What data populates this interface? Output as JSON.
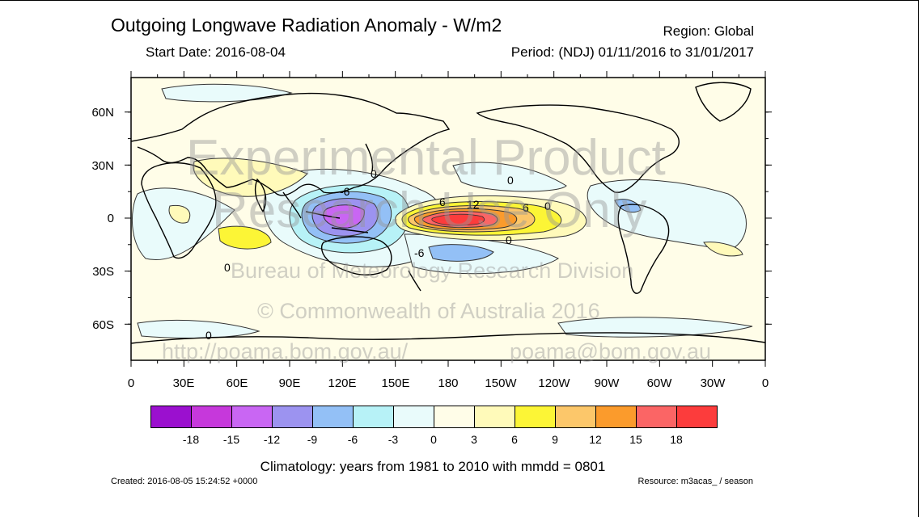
{
  "header": {
    "title": "Outgoing Longwave Radiation Anomaly - W/m2",
    "region": "Region: Global",
    "start_date": "Start Date: 2016-08-04",
    "period": "Period: (NDJ) 01/11/2016 to 31/01/2017"
  },
  "axes": {
    "lat_labels": [
      "60N",
      "30N",
      "0",
      "30S",
      "60S"
    ],
    "lon_labels": [
      "0",
      "30E",
      "60E",
      "90E",
      "120E",
      "150E",
      "180",
      "150W",
      "120W",
      "90W",
      "60W",
      "30W",
      "0"
    ]
  },
  "contour_labels": [
    "0",
    "0",
    "0",
    "-6",
    "-6",
    "6",
    "12",
    "6",
    "0",
    "0",
    "0"
  ],
  "colorbar": {
    "colors": [
      "#9b10cf",
      "#c638db",
      "#c966f3",
      "#9c93f0",
      "#93c0f6",
      "#b7f2f7",
      "#e9fbfb",
      "#fffde8",
      "#fffaba",
      "#fcf536",
      "#fcc76a",
      "#fb9b2c",
      "#fb6565",
      "#fc3c3c"
    ],
    "labels": [
      "-18",
      "-15",
      "-12",
      "-9",
      "-6",
      "-3",
      "0",
      "3",
      "6",
      "9",
      "12",
      "15",
      "18"
    ]
  },
  "footer": {
    "climatology": "Climatology: years from 1981 to 2010 with mmdd = 0801",
    "created": "Created: 2016-08-05 15:24:52 +0000",
    "resource": "Resource: m3acas_ / season"
  },
  "watermark": {
    "line1": "Experimental Product",
    "line2": "Research Use Only",
    "line3": "Bureau of Meteorology Research Division",
    "line4": "© Commonwealth of Australia 2016",
    "url": "http://poama.bom.gov.au/",
    "email": "poama@bom.gov.au"
  }
}
